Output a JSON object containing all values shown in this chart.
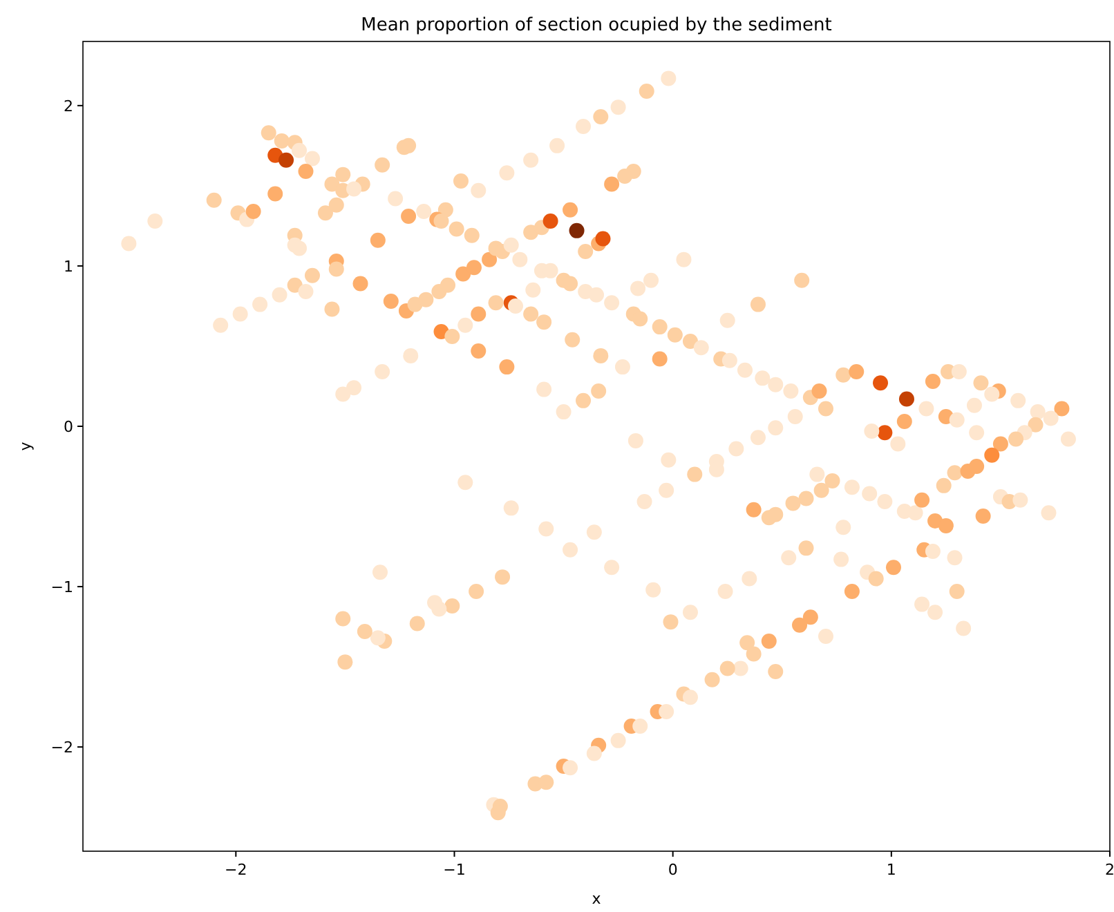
{
  "chart_data": {
    "type": "scatter",
    "title": "Mean proportion of section ocupied by the sediment",
    "xlabel": "x",
    "ylabel": "y",
    "marker": "circle",
    "xlim": [
      -2.7,
      2.0
    ],
    "ylim": [
      -2.65,
      2.4
    ],
    "xticks": [
      {
        "value": -2,
        "label": "−2"
      },
      {
        "value": -1,
        "label": "−1"
      },
      0,
      1,
      2
    ],
    "yticks": [
      {
        "value": -2,
        "label": "−2"
      },
      {
        "value": -1,
        "label": "−1"
      },
      0,
      1,
      2
    ],
    "x": [
      -2.49,
      -2.37,
      -2.1,
      -1.99,
      -1.95,
      -1.92,
      -1.85,
      -1.79,
      -1.73,
      -1.71,
      -1.65,
      -1.82,
      -1.77,
      -1.68,
      -1.82,
      -1.51,
      -1.56,
      -1.51,
      -1.42,
      -1.46,
      -1.59,
      -1.54,
      -1.73,
      -1.73,
      -1.71,
      -1.54,
      -1.54,
      -1.65,
      -1.73,
      -1.68,
      -1.8,
      -1.89,
      -1.98,
      -2.07,
      -1.56,
      -1.43,
      -1.35,
      -1.33,
      -1.23,
      -1.21,
      -1.27,
      -1.21,
      -1.14,
      -1.04,
      -1.08,
      -1.06,
      -0.99,
      -0.92,
      -0.97,
      -0.89,
      -0.76,
      -0.65,
      -0.53,
      -0.41,
      -0.33,
      -1.29,
      -1.22,
      -1.18,
      -1.13,
      -1.07,
      -1.03,
      -0.96,
      -0.91,
      -0.84,
      -0.81,
      -0.78,
      -0.74,
      -0.7,
      -0.65,
      -0.6,
      -0.56,
      -0.47,
      -0.44,
      -0.4,
      -0.34,
      -0.32,
      -0.6,
      -0.56,
      -0.5,
      -0.47,
      -0.4,
      -0.35,
      -0.74,
      -0.72,
      -0.81,
      -0.64,
      -0.65,
      -0.59,
      -0.46,
      -0.33,
      -0.89,
      -0.95,
      -1.06,
      -1.01,
      -0.89,
      -0.76,
      -1.2,
      -1.33,
      -1.46,
      -1.51,
      -0.59,
      -0.5,
      -0.41,
      -0.34,
      -0.02,
      -0.12,
      -0.25,
      -0.18,
      -0.22,
      -0.28,
      0.05,
      0.59,
      -0.1,
      -0.16,
      -0.28,
      -0.18,
      -0.15,
      -0.06,
      0.01,
      0.08,
      0.13,
      0.39,
      0.25,
      -0.23,
      -0.06,
      -0.17,
      0.22,
      0.26,
      0.33,
      0.41,
      0.47,
      0.54,
      0.63,
      0.67,
      0.7,
      0.56,
      0.47,
      0.39,
      0.29,
      0.78,
      0.84,
      0.95,
      1.07,
      1.16,
      1.19,
      1.26,
      1.31,
      1.41,
      1.49,
      1.46,
      1.58,
      1.38,
      1.25,
      1.3,
      1.06,
      0.97,
      0.91,
      1.03,
      1.39,
      1.67,
      1.78,
      1.73,
      1.66,
      1.61,
      1.57,
      1.5,
      1.81,
      -0.02,
      -0.03,
      -0.13,
      0.1,
      0.2,
      0.2,
      -0.36,
      -0.28,
      -0.09,
      -0.01,
      0.08,
      0.24,
      0.35,
      0.37,
      0.44,
      0.47,
      0.55,
      0.61,
      0.68,
      0.66,
      0.73,
      0.82,
      0.9,
      0.97,
      1.06,
      1.11,
      1.14,
      1.2,
      1.25,
      1.24,
      1.29,
      1.35,
      1.39,
      1.46,
      1.5,
      1.54,
      1.59,
      1.72,
      1.42,
      0.78,
      0.77,
      0.89,
      0.93,
      1.01,
      0.82,
      1.15,
      1.19,
      1.29,
      1.3,
      1.14,
      1.2,
      1.33,
      0.53,
      0.61,
      0.63,
      0.58,
      0.7,
      0.44,
      0.34,
      0.37,
      0.47,
      0.31,
      0.25,
      0.18,
      0.05,
      0.08,
      -0.07,
      -0.03,
      -0.19,
      -0.15,
      -0.25,
      -0.34,
      -0.36,
      -0.95,
      -0.74,
      -0.58,
      -0.47,
      -0.78,
      -0.9,
      -1.01,
      -1.07,
      -1.09,
      -1.17,
      -1.32,
      -1.35,
      -1.41,
      -1.51,
      -1.34,
      -1.5,
      -0.5,
      -0.47,
      -0.63,
      -0.58,
      -0.82,
      -0.79,
      -0.8
    ],
    "values": [
      1.14,
      1.28,
      1.41,
      1.33,
      1.29,
      1.34,
      1.83,
      1.78,
      1.77,
      1.72,
      1.67,
      1.69,
      1.66,
      1.59,
      1.45,
      1.57,
      1.51,
      1.47,
      1.51,
      1.48,
      1.33,
      1.38,
      1.19,
      1.13,
      1.11,
      1.03,
      0.98,
      0.94,
      0.88,
      0.84,
      0.82,
      0.76,
      0.7,
      0.63,
      0.73,
      0.89,
      1.16,
      1.63,
      1.74,
      1.75,
      1.42,
      1.31,
      1.34,
      1.35,
      1.29,
      1.28,
      1.23,
      1.19,
      1.53,
      1.47,
      1.58,
      1.66,
      1.75,
      1.87,
      1.93,
      0.78,
      0.72,
      0.76,
      0.79,
      0.84,
      0.88,
      0.95,
      0.99,
      1.04,
      1.11,
      1.09,
      1.13,
      1.04,
      1.21,
      1.24,
      1.28,
      1.35,
      1.22,
      1.09,
      1.14,
      1.17,
      0.97,
      0.97,
      0.91,
      0.89,
      0.84,
      0.82,
      0.77,
      0.75,
      0.77,
      0.85,
      0.7,
      0.65,
      0.54,
      0.44,
      0.7,
      0.63,
      0.59,
      0.56,
      0.47,
      0.37,
      0.44,
      0.34,
      0.24,
      0.2,
      0.23,
      0.09,
      0.16,
      0.22,
      2.17,
      2.09,
      1.99,
      1.59,
      1.56,
      1.51,
      1.04,
      0.91,
      0.91,
      0.86,
      0.77,
      0.7,
      0.67,
      0.62,
      0.57,
      0.53,
      0.49,
      0.76,
      0.66,
      0.37,
      0.42,
      -0.09,
      0.42,
      0.41,
      0.35,
      0.3,
      0.26,
      0.22,
      0.18,
      0.22,
      0.11,
      0.06,
      -0.01,
      -0.07,
      -0.14,
      0.32,
      0.34,
      0.27,
      0.17,
      0.11,
      0.28,
      0.34,
      0.34,
      0.27,
      0.22,
      0.2,
      0.16,
      0.13,
      0.06,
      0.04,
      0.03,
      -0.04,
      -0.03,
      -0.11,
      -0.04,
      0.09,
      0.11,
      0.05,
      0.01,
      -0.04,
      -0.08,
      -0.11,
      -0.08,
      -0.21,
      -0.4,
      -0.47,
      -0.3,
      -0.22,
      -0.27,
      -0.66,
      -0.88,
      -1.02,
      -1.22,
      -1.16,
      -1.03,
      -0.95,
      -0.52,
      -0.57,
      -0.55,
      -0.48,
      -0.45,
      -0.4,
      -0.3,
      -0.34,
      -0.38,
      -0.42,
      -0.47,
      -0.53,
      -0.54,
      -0.46,
      -0.59,
      -0.62,
      -0.37,
      -0.29,
      -0.28,
      -0.25,
      -0.18,
      -0.44,
      -0.47,
      -0.46,
      -0.54,
      -0.56,
      -0.63,
      -0.83,
      -0.91,
      -0.95,
      -0.88,
      -1.03,
      -0.77,
      -0.78,
      -0.82,
      -1.03,
      -1.11,
      -1.16,
      -1.26,
      -0.82,
      -0.76,
      -1.19,
      -1.24,
      -1.31,
      -1.34,
      -1.35,
      -1.42,
      -1.53,
      -1.51,
      -1.51,
      -1.58,
      -1.67,
      -1.69,
      -1.78,
      -1.78,
      -1.87,
      -1.87,
      -1.96,
      -1.99,
      -2.04,
      -0.35,
      -0.51,
      -0.64,
      -0.77,
      -0.94,
      -1.03,
      -1.12,
      -1.14,
      -1.1,
      -1.23,
      -1.34,
      -1.32,
      -1.28,
      -1.2,
      -0.91,
      -1.47,
      -2.12,
      -2.13,
      -2.23,
      -2.22,
      -2.36,
      -2.37,
      -2.41
    ],
    "colors": [
      "#fee6ce",
      "#fee6ce",
      "#fdd0a2",
      "#fdd0a2",
      "#fee6ce",
      "#fdae6b",
      "#fdd0a2",
      "#fdd0a2",
      "#fdd0a2",
      "#fee6ce",
      "#fee6ce",
      "#e6550d",
      "#c44103",
      "#fdae6b",
      "#fdae6b",
      "#fdd0a2",
      "#fdd0a2",
      "#fdd0a2",
      "#fdd0a2",
      "#fee6ce",
      "#fdd0a2",
      "#fdd0a2",
      "#fdd0a2",
      "#fee6ce",
      "#fee6ce",
      "#fdae6b",
      "#fdd0a2",
      "#fdd0a2",
      "#fdd0a2",
      "#fee6ce",
      "#fee6ce",
      "#fee6ce",
      "#fee6ce",
      "#fee6ce",
      "#fdd0a2",
      "#fdae6b",
      "#fdae6b",
      "#fdd0a2",
      "#fdd0a2",
      "#fdd0a2",
      "#fee6ce",
      "#fdae6b",
      "#fee6ce",
      "#fdd0a2",
      "#fdae6b",
      "#fdd0a2",
      "#fdd0a2",
      "#fdd0a2",
      "#fdd0a2",
      "#fee6ce",
      "#fee6ce",
      "#fee6ce",
      "#fee6ce",
      "#fee6ce",
      "#fdd0a2",
      "#fdae6b",
      "#fdae6b",
      "#fdd0a2",
      "#fdd0a2",
      "#fdd0a2",
      "#fdd0a2",
      "#fdae6b",
      "#fdae6b",
      "#fdae6b",
      "#fdd0a2",
      "#fdd0a2",
      "#fee6ce",
      "#fee6ce",
      "#fdd0a2",
      "#fdd0a2",
      "#e6550d",
      "#fdae6b",
      "#7f2704",
      "#fdd0a2",
      "#fdae6b",
      "#e6550d",
      "#fee6ce",
      "#fee6ce",
      "#fdd0a2",
      "#fdd0a2",
      "#fee6ce",
      "#fee6ce",
      "#e6550d",
      "#fee6ce",
      "#fdd0a2",
      "#fee6ce",
      "#fdd0a2",
      "#fdd0a2",
      "#fdd0a2",
      "#fdd0a2",
      "#fdae6b",
      "#fee6ce",
      "#fd8d3c",
      "#fdd0a2",
      "#fdae6b",
      "#fdae6b",
      "#fee6ce",
      "#fee6ce",
      "#fee6ce",
      "#fee6ce",
      "#fee6ce",
      "#fee6ce",
      "#fdd0a2",
      "#fdd0a2",
      "#fee6ce",
      "#fdd0a2",
      "#fee6ce",
      "#fdd0a2",
      "#fdd0a2",
      "#fdae6b",
      "#fee6ce",
      "#fdd0a2",
      "#fee6ce",
      "#fee6ce",
      "#fee6ce",
      "#fdd0a2",
      "#fdd0a2",
      "#fdd0a2",
      "#fdd0a2",
      "#fdd0a2",
      "#fee6ce",
      "#fdd0a2",
      "#fee6ce",
      "#fee6ce",
      "#fdae6b",
      "#fee6ce",
      "#fdd0a2",
      "#fee6ce",
      "#fee6ce",
      "#fee6ce",
      "#fee6ce",
      "#fee6ce",
      "#fdd0a2",
      "#fdae6b",
      "#fdd0a2",
      "#fee6ce",
      "#fee6ce",
      "#fee6ce",
      "#fee6ce",
      "#fdd0a2",
      "#fdae6b",
      "#e6550d",
      "#c44103",
      "#fee6ce",
      "#fdae6b",
      "#fdd0a2",
      "#fee6ce",
      "#fdd0a2",
      "#fdae6b",
      "#fee6ce",
      "#fee6ce",
      "#fee6ce",
      "#fdae6b",
      "#fee6ce",
      "#fdae6b",
      "#e6550d",
      "#fee6ce",
      "#fee6ce",
      "#fee6ce",
      "#fee6ce",
      "#fdae6b",
      "#fee6ce",
      "#fdd0a2",
      "#fee6ce",
      "#fdd0a2",
      "#fdae6b",
      "#fee6ce",
      "#fee6ce",
      "#fee6ce",
      "#fee6ce",
      "#fdd0a2",
      "#fee6ce",
      "#fee6ce",
      "#fee6ce",
      "#fee6ce",
      "#fee6ce",
      "#fdd0a2",
      "#fee6ce",
      "#fee6ce",
      "#fee6ce",
      "#fdae6b",
      "#fdd0a2",
      "#fdd0a2",
      "#fdd0a2",
      "#fdd0a2",
      "#fdd0a2",
      "#fee6ce",
      "#fdd0a2",
      "#fee6ce",
      "#fee6ce",
      "#fee6ce",
      "#fee6ce",
      "#fee6ce",
      "#fdae6b",
      "#fdae6b",
      "#fdae6b",
      "#fdd0a2",
      "#fdd0a2",
      "#fdae6b",
      "#fdae6b",
      "#fd8d3c",
      "#fee6ce",
      "#fdd0a2",
      "#fee6ce",
      "#fee6ce",
      "#fdae6b",
      "#fee6ce",
      "#fee6ce",
      "#fee6ce",
      "#fdd0a2",
      "#fdae6b",
      "#fdae6b",
      "#fdae6b",
      "#fee6ce",
      "#fee6ce",
      "#fdd0a2",
      "#fee6ce",
      "#fee6ce",
      "#fee6ce",
      "#fee6ce",
      "#fdd0a2",
      "#fdae6b",
      "#fdae6b",
      "#fee6ce",
      "#fdae6b",
      "#fdd0a2",
      "#fdd0a2",
      "#fdd0a2",
      "#fee6ce",
      "#fdd0a2",
      "#fdd0a2",
      "#fdd0a2",
      "#fee6ce",
      "#fdae6b",
      "#fee6ce",
      "#fdae6b",
      "#fee6ce",
      "#fee6ce",
      "#fdae6b",
      "#fee6ce",
      "#fee6ce",
      "#fee6ce",
      "#fee6ce",
      "#fee6ce",
      "#fdd0a2",
      "#fdd0a2",
      "#fdd0a2",
      "#fee6ce",
      "#fee6ce",
      "#fdd0a2",
      "#fdd0a2",
      "#fee6ce",
      "#fdd0a2",
      "#fdd0a2",
      "#fee6ce",
      "#fdd0a2",
      "#fdae6b",
      "#fee6ce",
      "#fdd0a2",
      "#fdd0a2",
      "#fee6ce",
      "#fdd0a2",
      "#fdd0a2"
    ]
  }
}
